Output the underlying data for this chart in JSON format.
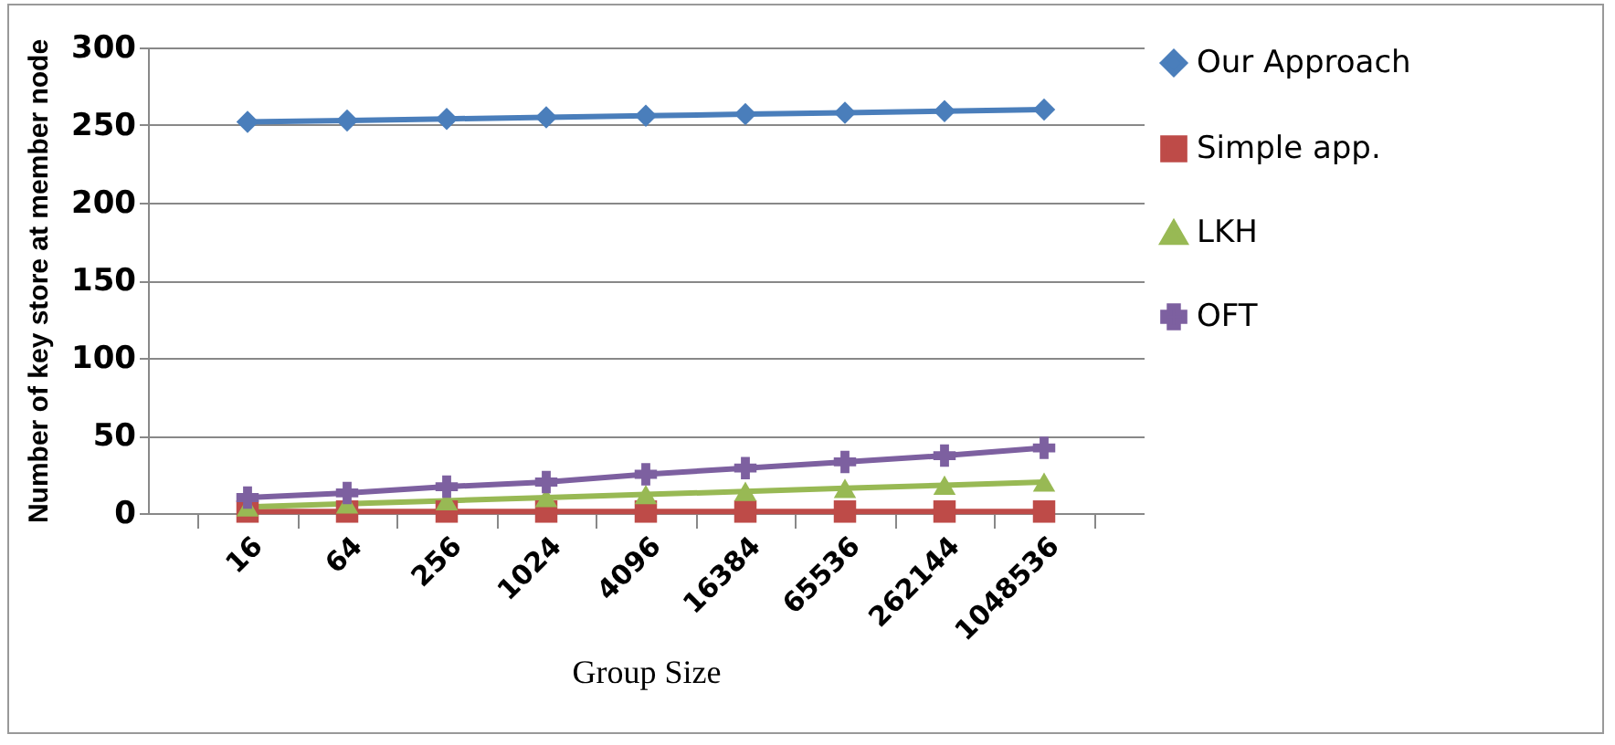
{
  "chart_data": {
    "type": "line",
    "xlabel": "Group Size",
    "ylabel": "Number of key store at member node",
    "categories": [
      "16",
      "64",
      "256",
      "1024",
      "4096",
      "16384",
      "65536",
      "262144",
      "1048536"
    ],
    "series": [
      {
        "name": "Our Approach",
        "color": "#4a7ebb",
        "marker": "diamond",
        "values": [
          252,
          253,
          254,
          255,
          256,
          257,
          258,
          259,
          260
        ]
      },
      {
        "name": "Simple app.",
        "color": "#be4b48",
        "marker": "square",
        "values": [
          1,
          1,
          1,
          1,
          1,
          1,
          1,
          1,
          1
        ]
      },
      {
        "name": "LKH",
        "color": "#98b954",
        "marker": "triangle",
        "values": [
          4,
          6,
          8,
          10,
          12,
          14,
          16,
          18,
          20
        ]
      },
      {
        "name": "OFT",
        "color": "#7d60a0",
        "marker": "cross",
        "values": [
          10,
          13,
          17,
          20,
          25,
          29,
          33,
          37,
          42
        ]
      }
    ],
    "ylim": [
      0,
      300
    ],
    "yticks": [
      0,
      50,
      100,
      150,
      200,
      250,
      300
    ],
    "grid": "y",
    "legend": "right"
  }
}
